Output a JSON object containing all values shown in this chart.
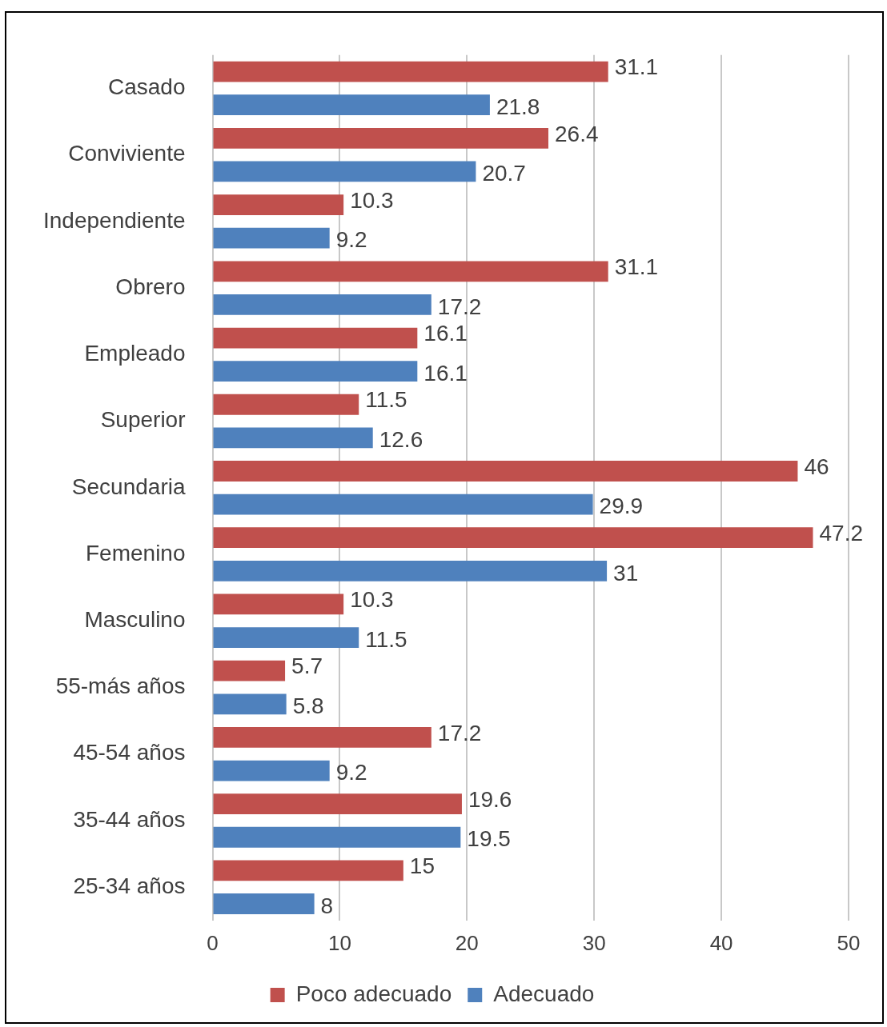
{
  "chart_data": {
    "type": "bar",
    "orientation": "horizontal",
    "categories": [
      "Casado",
      "Conviviente",
      "Independiente",
      "Obrero",
      "Empleado",
      "Superior",
      "Secundaria",
      "Femenino",
      "Masculino",
      "55-más años",
      "45-54 años",
      "35-44 años",
      "25-34 años"
    ],
    "series": [
      {
        "name": "Poco adecuado",
        "color": "#c0504d",
        "values": [
          31.1,
          26.4,
          10.3,
          31.1,
          16.1,
          11.5,
          46,
          47.2,
          10.3,
          5.7,
          17.2,
          19.6,
          15
        ]
      },
      {
        "name": "Adecuado",
        "color": "#4f81bd",
        "values": [
          21.8,
          20.7,
          9.2,
          17.2,
          16.1,
          12.6,
          29.9,
          31,
          11.5,
          5.8,
          9.2,
          19.5,
          8
        ]
      }
    ],
    "xlim": [
      0,
      50
    ],
    "xticks": [
      0,
      10,
      20,
      30,
      40,
      50
    ],
    "grid": "x",
    "legend": "bottom",
    "data_labels": true
  }
}
